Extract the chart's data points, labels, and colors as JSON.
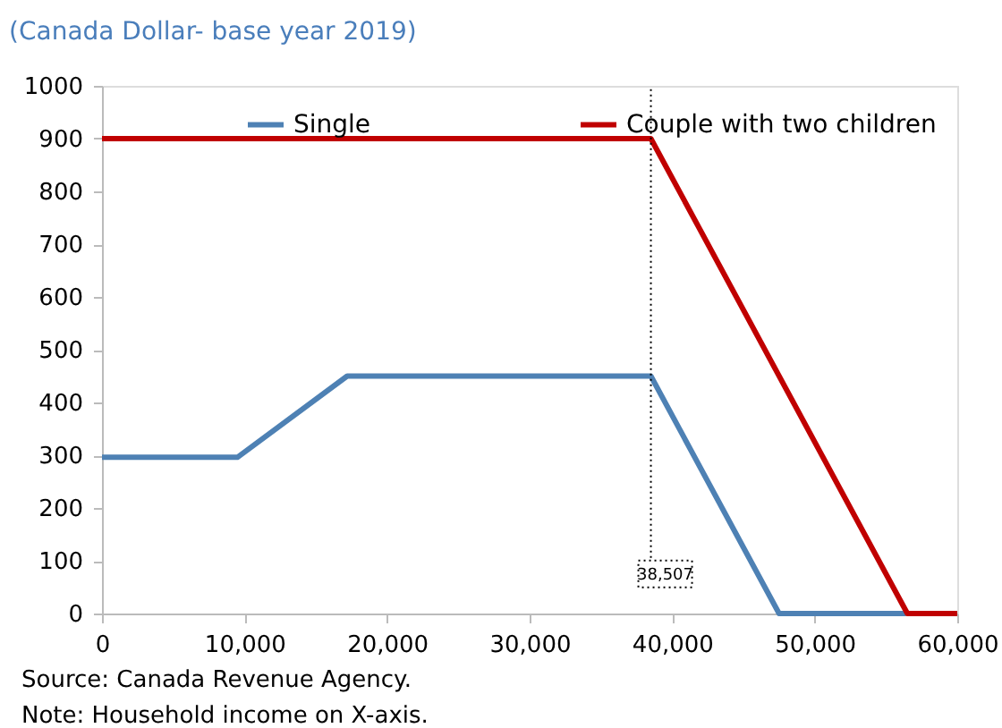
{
  "chart_data": {
    "type": "line",
    "title": "(Canada Dollar- base year 2019)",
    "series": [
      {
        "name": "Single",
        "color": "#4e81b4",
        "x": [
          0,
          9500,
          17200,
          38507,
          47500,
          56400
        ],
        "values": [
          296,
          296,
          450,
          450,
          0,
          0
        ]
      },
      {
        "name": "Couple with two children",
        "color": "#c00000",
        "x": [
          0,
          38507,
          56500,
          60000
        ],
        "values": [
          900,
          900,
          0,
          0
        ]
      }
    ],
    "xlim": [
      0,
      60000
    ],
    "xticks": [
      {
        "value": 0,
        "label": "0"
      },
      {
        "value": 10000,
        "label": "10,000"
      },
      {
        "value": 20000,
        "label": "20,000"
      },
      {
        "value": 30000,
        "label": "30,000"
      },
      {
        "value": 40000,
        "label": "40,000"
      },
      {
        "value": 50000,
        "label": "50,000"
      },
      {
        "value": 60000,
        "label": "60,000"
      }
    ],
    "ylim": [
      0,
      1000
    ],
    "yticks": [
      0,
      100,
      200,
      300,
      400,
      500,
      600,
      700,
      800,
      900,
      1000
    ],
    "ref_lines": [
      {
        "axis": "x",
        "value": 38507,
        "label": "38,507",
        "line_style": "dotted",
        "color": "#000000"
      }
    ],
    "annotations": [
      "Source: Canada Revenue Agency.",
      "Note: Household income on X-axis."
    ],
    "grid": false,
    "legend": "top",
    "marker": "none",
    "line_style": "solid"
  }
}
